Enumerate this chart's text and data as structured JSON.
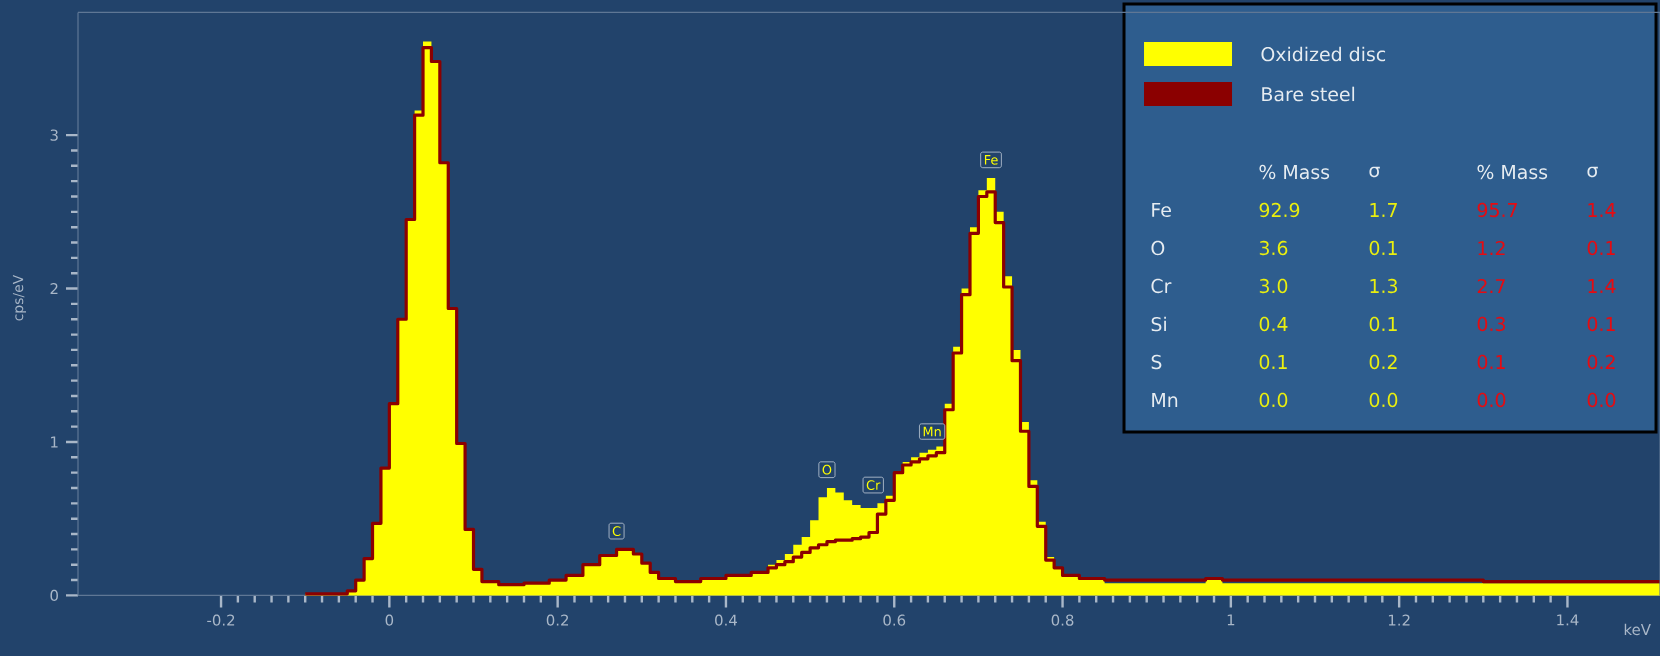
{
  "chart_data": {
    "type": "step",
    "xlabel": "keV",
    "ylabel": "cps/eV",
    "x": [
      -0.1,
      -0.05,
      -0.04,
      -0.03,
      -0.02,
      -0.01,
      0.0,
      0.01,
      0.02,
      0.03,
      0.04,
      0.05,
      0.06,
      0.07,
      0.08,
      0.09,
      0.1,
      0.11,
      0.13,
      0.16,
      0.19,
      0.21,
      0.23,
      0.25,
      0.27,
      0.29,
      0.3,
      0.31,
      0.32,
      0.34,
      0.37,
      0.4,
      0.43,
      0.45,
      0.46,
      0.47,
      0.48,
      0.49,
      0.5,
      0.51,
      0.52,
      0.53,
      0.54,
      0.55,
      0.56,
      0.57,
      0.58,
      0.59,
      0.6,
      0.61,
      0.62,
      0.63,
      0.64,
      0.65,
      0.66,
      0.67,
      0.68,
      0.69,
      0.7,
      0.71,
      0.72,
      0.73,
      0.74,
      0.75,
      0.76,
      0.77,
      0.78,
      0.79,
      0.8,
      0.82,
      0.85,
      0.9,
      0.95,
      0.97,
      0.99,
      1.05,
      1.1,
      1.2,
      1.3,
      1.4,
      1.51
    ],
    "series": [
      {
        "name": "Oxidized disc",
        "type": "area",
        "color": "#ffff00",
        "values": [
          0.01,
          0.03,
          0.1,
          0.24,
          0.47,
          0.83,
          1.25,
          1.8,
          2.45,
          3.16,
          3.61,
          3.48,
          2.82,
          1.87,
          0.99,
          0.43,
          0.17,
          0.09,
          0.07,
          0.08,
          0.1,
          0.13,
          0.2,
          0.26,
          0.3,
          0.27,
          0.21,
          0.15,
          0.11,
          0.09,
          0.11,
          0.13,
          0.15,
          0.2,
          0.23,
          0.27,
          0.33,
          0.38,
          0.49,
          0.64,
          0.7,
          0.67,
          0.62,
          0.59,
          0.57,
          0.57,
          0.6,
          0.65,
          0.8,
          0.87,
          0.9,
          0.93,
          0.95,
          0.97,
          1.25,
          1.62,
          2.0,
          2.4,
          2.64,
          2.72,
          2.5,
          2.08,
          1.6,
          1.13,
          0.75,
          0.48,
          0.25,
          0.18,
          0.12,
          0.1,
          0.08,
          0.08,
          0.08,
          0.1,
          0.08,
          0.08,
          0.08,
          0.08,
          0.08,
          0.08,
          0.08
        ]
      },
      {
        "name": "Bare steel",
        "color": "#8b0000",
        "values": [
          0.01,
          0.03,
          0.1,
          0.24,
          0.47,
          0.83,
          1.25,
          1.8,
          2.45,
          3.13,
          3.57,
          3.48,
          2.82,
          1.87,
          0.99,
          0.43,
          0.17,
          0.09,
          0.07,
          0.08,
          0.1,
          0.13,
          0.2,
          0.26,
          0.3,
          0.27,
          0.21,
          0.15,
          0.11,
          0.09,
          0.11,
          0.13,
          0.15,
          0.18,
          0.2,
          0.22,
          0.25,
          0.28,
          0.31,
          0.33,
          0.35,
          0.36,
          0.36,
          0.37,
          0.38,
          0.41,
          0.53,
          0.62,
          0.8,
          0.85,
          0.87,
          0.89,
          0.91,
          0.93,
          1.21,
          1.58,
          1.96,
          2.36,
          2.6,
          2.63,
          2.43,
          2.01,
          1.53,
          1.07,
          0.71,
          0.45,
          0.23,
          0.18,
          0.13,
          0.11,
          0.1,
          0.1,
          0.1,
          0.11,
          0.1,
          0.1,
          0.1,
          0.1,
          0.09,
          0.09,
          0.09
        ]
      }
    ],
    "xlim": [
      -0.37,
      1.51
    ],
    "ylim": [
      0,
      3.8
    ],
    "xticks": [
      -0.2,
      0,
      0.2,
      0.4,
      0.6,
      0.8,
      1,
      1.2,
      1.4
    ],
    "yticks": [
      0,
      1,
      2,
      3
    ],
    "legend": "top right",
    "grid": false,
    "annotations": [
      {
        "text": "C",
        "x": 0.27,
        "y": 0.3
      },
      {
        "text": "O",
        "x": 0.52,
        "y": 0.7
      },
      {
        "text": "Cr",
        "x": 0.575,
        "y": 0.6
      },
      {
        "text": "Mn",
        "x": 0.645,
        "y": 0.95
      },
      {
        "text": "Fe",
        "x": 0.715,
        "y": 2.72
      },
      "% Mass",
      "σ",
      "% Mass",
      "σ",
      "Fe",
      "92.9",
      "1.7",
      "95.7",
      "1.4",
      "O",
      "3.6",
      "0.1",
      "1.2",
      "0.1",
      "Cr",
      "3.0",
      "1.3",
      "2.7",
      "1.4",
      "Si",
      "0.4",
      "0.1",
      "0.3",
      "0.1",
      "S",
      "0.1",
      "0.2",
      "0.1",
      "0.2",
      "Mn",
      "0.0",
      "0.0",
      "0.0",
      "0.0"
    ]
  }
}
